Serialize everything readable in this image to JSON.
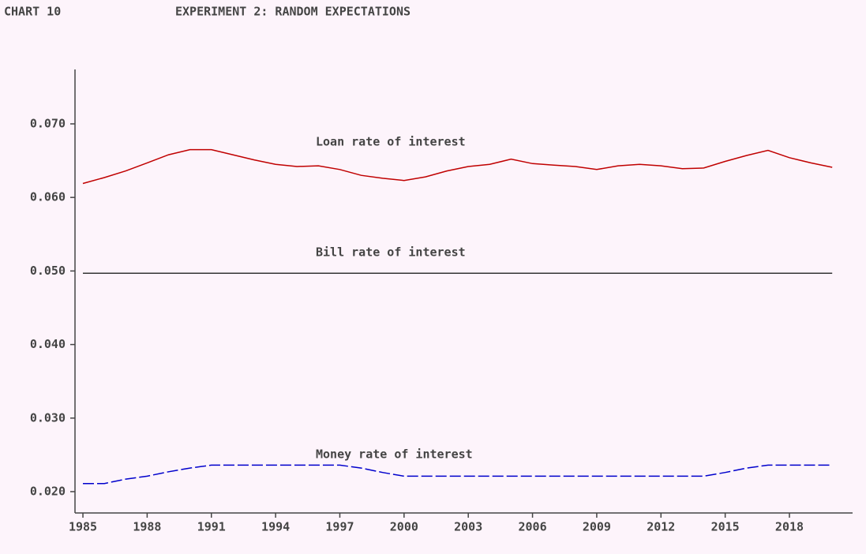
{
  "chart_data": {
    "type": "line",
    "chart_number": "CHART 10",
    "title": "EXPERIMENT 2: RANDOM EXPECTATIONS",
    "x": [
      1985,
      1986,
      1987,
      1988,
      1989,
      1990,
      1991,
      1992,
      1993,
      1994,
      1995,
      1996,
      1997,
      1998,
      1999,
      2000,
      2001,
      2002,
      2003,
      2004,
      2005,
      2006,
      2007,
      2008,
      2009,
      2010,
      2011,
      2012,
      2013,
      2014,
      2015,
      2016,
      2017,
      2018,
      2019,
      2020
    ],
    "series": [
      {
        "name": "Loan rate of interest",
        "color": "#c00000",
        "dashed": false,
        "values": [
          0.0619,
          0.0627,
          0.0636,
          0.0647,
          0.0658,
          0.0665,
          0.0665,
          0.0658,
          0.0651,
          0.0645,
          0.0642,
          0.0643,
          0.0638,
          0.063,
          0.0626,
          0.0623,
          0.0628,
          0.0636,
          0.0642,
          0.0645,
          0.0652,
          0.0646,
          0.0644,
          0.0642,
          0.0638,
          0.0643,
          0.0645,
          0.0643,
          0.0639,
          0.064,
          0.0649,
          0.0657,
          0.0664,
          0.0654,
          0.0647,
          0.0641
        ]
      },
      {
        "name": "Bill rate of interest",
        "color": "#333333",
        "dashed": false,
        "values": [
          0.0497,
          0.0497,
          0.0497,
          0.0497,
          0.0497,
          0.0497,
          0.0497,
          0.0497,
          0.0497,
          0.0497,
          0.0497,
          0.0497,
          0.0497,
          0.0497,
          0.0497,
          0.0497,
          0.0497,
          0.0497,
          0.0497,
          0.0497,
          0.0497,
          0.0497,
          0.0497,
          0.0497,
          0.0497,
          0.0497,
          0.0497,
          0.0497,
          0.0497,
          0.0497,
          0.0497,
          0.0497,
          0.0497,
          0.0497,
          0.0497,
          0.0497
        ]
      },
      {
        "name": "Money rate of interest",
        "color": "#0000cc",
        "dashed": true,
        "values": [
          0.0211,
          0.0211,
          0.0217,
          0.0221,
          0.0227,
          0.0232,
          0.0236,
          0.0236,
          0.0236,
          0.0236,
          0.0236,
          0.0236,
          0.0236,
          0.0232,
          0.0226,
          0.0221,
          0.0221,
          0.0221,
          0.0221,
          0.0221,
          0.0221,
          0.0221,
          0.0221,
          0.0221,
          0.0221,
          0.0221,
          0.0221,
          0.0221,
          0.0221,
          0.0221,
          0.0226,
          0.0232,
          0.0236,
          0.0236,
          0.0236,
          0.0236
        ]
      }
    ],
    "xlim": [
      1984.63,
      2020.95
    ],
    "xticks": [
      1985,
      1988,
      1991,
      1994,
      1997,
      2000,
      2003,
      2006,
      2009,
      2012,
      2015,
      2018
    ],
    "ylim": [
      0.0171,
      0.0774
    ],
    "yticks": [
      {
        "value": 0.02,
        "label": "0.020"
      },
      {
        "value": 0.03,
        "label": "0.030"
      },
      {
        "value": 0.04,
        "label": "0.040"
      },
      {
        "value": 0.05,
        "label": "0.050"
      },
      {
        "value": 0.06,
        "label": "0.060"
      },
      {
        "value": 0.07,
        "label": "0.070"
      }
    ]
  }
}
